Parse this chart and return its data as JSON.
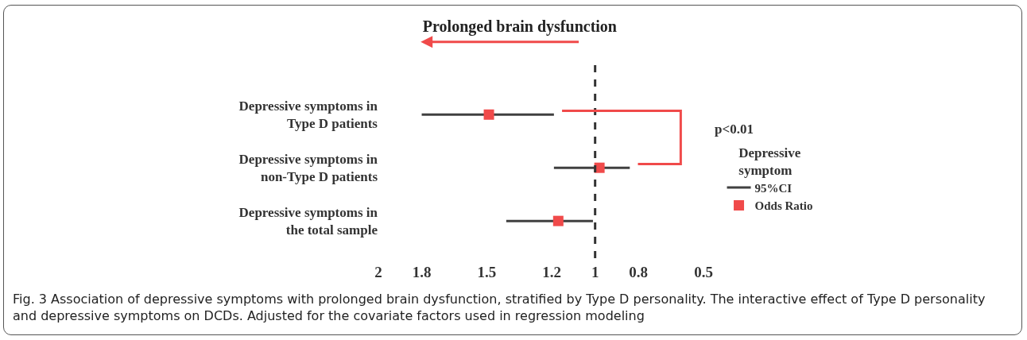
{
  "chart_data": {
    "type": "scatter",
    "orientation": "horizontal",
    "title": "Prolonged brain dysfunction",
    "categories": [
      "Depressive symptoms in Type D patients",
      "Depressive symptoms in non-Type D patients",
      "Depressive symptoms in the total sample"
    ],
    "series": [
      {
        "name": "Odds Ratio",
        "color": "#f04a4a",
        "values": [
          1.49,
          0.98,
          1.17
        ],
        "errors": [
          [
            1.19,
            1.8
          ],
          [
            0.84,
            1.19
          ],
          [
            1.01,
            1.41
          ]
        ]
      }
    ],
    "xlim": [
      2,
      0.5
    ],
    "xticks": [
      2,
      1.8,
      1.5,
      1.2,
      1,
      0.8,
      0.5
    ],
    "ref_lines": [
      {
        "axis": "x",
        "value": 1,
        "color": "#333333",
        "line_style": "dashed"
      }
    ],
    "legend": "right",
    "legend_title": "Depressive symptom",
    "marker": "square",
    "grid": false,
    "annotations": [
      "p<0.01",
      "95%CI",
      "Fig. 3 Association of depressive symptoms with prolonged brain dysfunction, stratified by Type D personality. The interactive effect of Type D personality and depressive symptoms on DCDs. Adjusted for the covariate factors used in regression modeling"
    ]
  }
}
